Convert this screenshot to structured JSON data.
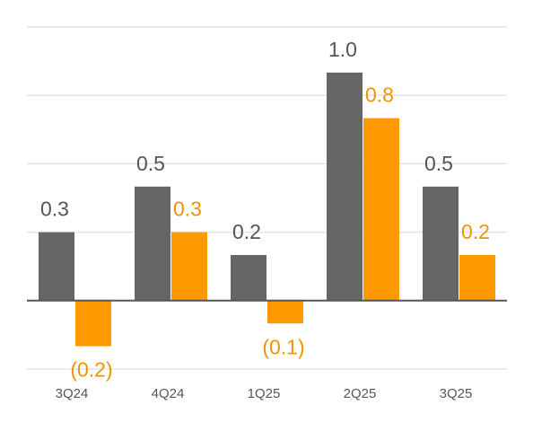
{
  "chart_data": {
    "type": "bar",
    "categories": [
      "3Q24",
      "4Q24",
      "1Q25",
      "2Q25",
      "3Q25"
    ],
    "series": [
      {
        "color": "#666666",
        "label_color": "#555555",
        "values": [
          0.3,
          0.5,
          0.2,
          1.0,
          0.5
        ],
        "value_labels": [
          "0.3",
          "0.5",
          "0.2",
          "1.0",
          "0.5"
        ]
      },
      {
        "color": "#ff9900",
        "label_color": "#f39200",
        "values": [
          -0.2,
          0.3,
          -0.1,
          0.8,
          0.2
        ],
        "value_labels": [
          "(0.2)",
          "0.3",
          "(0.1)",
          "0.8",
          "0.2"
        ]
      }
    ],
    "ylim": [
      -0.3,
      1.2
    ],
    "grid_values": [
      -0.3,
      0,
      0.3,
      0.6,
      0.9,
      1.2
    ],
    "grid": true
  }
}
